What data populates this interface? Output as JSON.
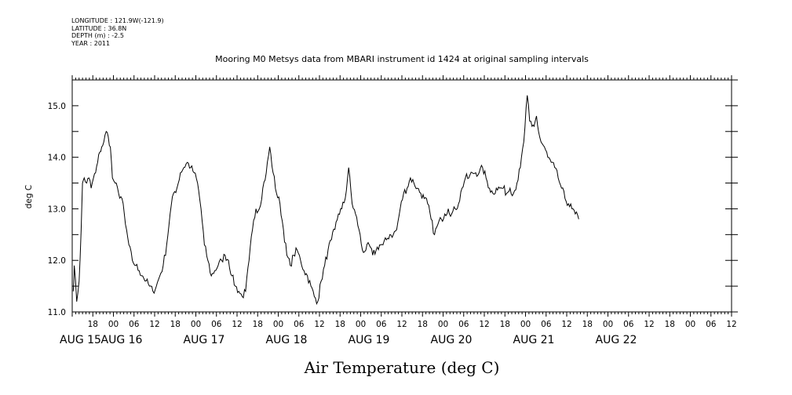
{
  "header": {
    "longitude": "LONGITUDE : 121.9W(-121.9)",
    "latitude": "LATITUDE : 36.8N",
    "depth": "DEPTH (m) : -2.5",
    "year": "YEAR : 2011"
  },
  "chart_data": {
    "type": "line",
    "title": "Mooring M0 Metsys data from MBARI instrument id 1424 at original sampling intervals",
    "xlabel": "Air Temperature (deg C)",
    "ylabel": "deg C",
    "ylim": [
      11.0,
      15.5
    ],
    "xlim_hours": [
      12,
      204
    ],
    "y_ticks": [
      {
        "value": 11.0,
        "label": "11.0"
      },
      {
        "value": 12.0,
        "label": "12.0"
      },
      {
        "value": 13.0,
        "label": "13.0"
      },
      {
        "value": 14.0,
        "label": "14.0"
      },
      {
        "value": 15.0,
        "label": "15.0"
      }
    ],
    "x_hour_ticks": [
      {
        "hour": 18,
        "label": "18"
      },
      {
        "hour": 24,
        "label": "00"
      },
      {
        "hour": 30,
        "label": "06"
      },
      {
        "hour": 36,
        "label": "12"
      },
      {
        "hour": 42,
        "label": "18"
      },
      {
        "hour": 48,
        "label": "00"
      },
      {
        "hour": 54,
        "label": "06"
      },
      {
        "hour": 60,
        "label": "12"
      },
      {
        "hour": 66,
        "label": "18"
      },
      {
        "hour": 72,
        "label": "00"
      },
      {
        "hour": 78,
        "label": "06"
      },
      {
        "hour": 84,
        "label": "12"
      },
      {
        "hour": 90,
        "label": "18"
      },
      {
        "hour": 96,
        "label": "00"
      },
      {
        "hour": 102,
        "label": "06"
      },
      {
        "hour": 108,
        "label": "12"
      },
      {
        "hour": 114,
        "label": "18"
      },
      {
        "hour": 120,
        "label": "00"
      },
      {
        "hour": 126,
        "label": "06"
      },
      {
        "hour": 132,
        "label": "12"
      },
      {
        "hour": 138,
        "label": "18"
      },
      {
        "hour": 144,
        "label": "00"
      },
      {
        "hour": 150,
        "label": "06"
      },
      {
        "hour": 156,
        "label": "12"
      },
      {
        "hour": 162,
        "label": "18"
      },
      {
        "hour": 168,
        "label": "00"
      },
      {
        "hour": 174,
        "label": "06"
      },
      {
        "hour": 180,
        "label": "12"
      },
      {
        "hour": 186,
        "label": "18"
      },
      {
        "hour": 192,
        "label": "00"
      },
      {
        "hour": 198,
        "label": "06"
      },
      {
        "hour": 204,
        "label": "12"
      }
    ],
    "x_date_labels": [
      {
        "hour": 12,
        "label": "AUG 15"
      },
      {
        "hour": 24,
        "label": "AUG 16"
      },
      {
        "hour": 48,
        "label": "AUG 17"
      },
      {
        "hour": 72,
        "label": "AUG 18"
      },
      {
        "hour": 96,
        "label": "AUG 19"
      },
      {
        "hour": 120,
        "label": "AUG 20"
      },
      {
        "hour": 144,
        "label": "AUG 21"
      },
      {
        "hour": 168,
        "label": "AUG 22"
      }
    ],
    "series": [
      {
        "values": [
          [
            12.3,
            11.4
          ],
          [
            12.6,
            11.9
          ],
          [
            13.3,
            11.2
          ],
          [
            14.0,
            11.6
          ],
          [
            14.6,
            12.6
          ],
          [
            15.0,
            13.5
          ],
          [
            15.5,
            13.6
          ],
          [
            16.2,
            13.5
          ],
          [
            16.9,
            13.6
          ],
          [
            17.5,
            13.4
          ],
          [
            18.2,
            13.6
          ],
          [
            18.8,
            13.7
          ],
          [
            19.4,
            13.9
          ],
          [
            20.0,
            14.1
          ],
          [
            20.6,
            14.2
          ],
          [
            21.2,
            14.3
          ],
          [
            21.9,
            14.5
          ],
          [
            22.5,
            14.4
          ],
          [
            23.1,
            14.2
          ],
          [
            23.7,
            13.6
          ],
          [
            24.5,
            13.5
          ],
          [
            25.5,
            13.3
          ],
          [
            26.5,
            13.2
          ],
          [
            27.5,
            12.7
          ],
          [
            28.5,
            12.3
          ],
          [
            29.5,
            12.0
          ],
          [
            30.5,
            11.9
          ],
          [
            31.5,
            11.8
          ],
          [
            32.5,
            11.7
          ],
          [
            33.5,
            11.6
          ],
          [
            34.5,
            11.5
          ],
          [
            35.5,
            11.4
          ],
          [
            36.5,
            11.5
          ],
          [
            37.5,
            11.7
          ],
          [
            38.5,
            11.9
          ],
          [
            39.5,
            12.3
          ],
          [
            40.5,
            12.9
          ],
          [
            41.5,
            13.3
          ],
          [
            42.5,
            13.4
          ],
          [
            43.5,
            13.7
          ],
          [
            44.5,
            13.8
          ],
          [
            45.5,
            13.9
          ],
          [
            46.5,
            13.8
          ],
          [
            47.5,
            13.7
          ],
          [
            48.5,
            13.5
          ],
          [
            49.5,
            13.0
          ],
          [
            50.5,
            12.3
          ],
          [
            51.5,
            12.0
          ],
          [
            52.5,
            11.7
          ],
          [
            53.5,
            11.8
          ],
          [
            54.5,
            11.9
          ],
          [
            55.5,
            12.0
          ],
          [
            56.5,
            12.1
          ],
          [
            57.5,
            12.0
          ],
          [
            58.5,
            11.7
          ],
          [
            59.5,
            11.5
          ],
          [
            60.5,
            11.4
          ],
          [
            61.5,
            11.3
          ],
          [
            62.5,
            11.4
          ],
          [
            63.5,
            12.0
          ],
          [
            64.5,
            12.6
          ],
          [
            65.5,
            13.0
          ],
          [
            66.5,
            13.0
          ],
          [
            67.5,
            13.4
          ],
          [
            68.5,
            13.7
          ],
          [
            69.5,
            14.2
          ],
          [
            70.5,
            13.7
          ],
          [
            71.5,
            13.3
          ],
          [
            72.5,
            13.1
          ],
          [
            73.5,
            12.6
          ],
          [
            74.5,
            12.1
          ],
          [
            75.5,
            11.9
          ],
          [
            76.5,
            12.1
          ],
          [
            77.5,
            12.2
          ],
          [
            78.5,
            12.0
          ],
          [
            79.5,
            11.8
          ],
          [
            80.5,
            11.7
          ],
          [
            81.5,
            11.5
          ],
          [
            82.5,
            11.3
          ],
          [
            83.5,
            11.2
          ],
          [
            84.5,
            11.6
          ],
          [
            85.5,
            11.9
          ],
          [
            86.5,
            12.2
          ],
          [
            87.5,
            12.4
          ],
          [
            88.5,
            12.6
          ],
          [
            89.5,
            12.9
          ],
          [
            90.5,
            13.0
          ],
          [
            91.5,
            13.2
          ],
          [
            92.5,
            13.8
          ],
          [
            93.5,
            13.1
          ],
          [
            94.5,
            12.9
          ],
          [
            95.5,
            12.6
          ],
          [
            96.5,
            12.2
          ],
          [
            97.5,
            12.2
          ],
          [
            98.5,
            12.3
          ],
          [
            99.5,
            12.1
          ],
          [
            100.5,
            12.2
          ],
          [
            101.5,
            12.3
          ],
          [
            102.5,
            12.3
          ],
          [
            103.5,
            12.4
          ],
          [
            104.5,
            12.5
          ],
          [
            105.5,
            12.5
          ],
          [
            106.5,
            12.6
          ],
          [
            107.5,
            13.0
          ],
          [
            108.5,
            13.3
          ],
          [
            109.5,
            13.4
          ],
          [
            110.5,
            13.6
          ],
          [
            111.5,
            13.5
          ],
          [
            112.5,
            13.4
          ],
          [
            113.5,
            13.3
          ],
          [
            114.5,
            13.2
          ],
          [
            115.5,
            13.1
          ],
          [
            116.5,
            12.8
          ],
          [
            117.5,
            12.5
          ],
          [
            118.5,
            12.7
          ],
          [
            119.5,
            12.8
          ],
          [
            120.5,
            12.9
          ],
          [
            121.5,
            13.0
          ],
          [
            122.5,
            12.9
          ],
          [
            123.5,
            13.0
          ],
          [
            124.5,
            13.1
          ],
          [
            125.5,
            13.4
          ],
          [
            126.5,
            13.6
          ],
          [
            127.5,
            13.6
          ],
          [
            128.5,
            13.7
          ],
          [
            129.5,
            13.7
          ],
          [
            130.5,
            13.7
          ],
          [
            131.5,
            13.8
          ],
          [
            132.5,
            13.6
          ],
          [
            133.5,
            13.4
          ],
          [
            134.5,
            13.3
          ],
          [
            135.5,
            13.4
          ],
          [
            136.5,
            13.4
          ],
          [
            137.5,
            13.4
          ],
          [
            138.5,
            13.3
          ],
          [
            139.5,
            13.4
          ],
          [
            140.5,
            13.3
          ],
          [
            141.5,
            13.5
          ],
          [
            142.5,
            13.8
          ],
          [
            143.5,
            14.3
          ],
          [
            144.5,
            15.2
          ],
          [
            145.2,
            14.7
          ],
          [
            145.9,
            14.6
          ],
          [
            146.5,
            14.6
          ],
          [
            147.2,
            14.8
          ],
          [
            147.8,
            14.5
          ],
          [
            148.5,
            14.3
          ],
          [
            149.5,
            14.2
          ],
          [
            150.5,
            14.0
          ],
          [
            151.5,
            13.9
          ],
          [
            152.5,
            13.8
          ],
          [
            153.5,
            13.6
          ],
          [
            154.5,
            13.4
          ],
          [
            155.5,
            13.2
          ],
          [
            156.5,
            13.1
          ],
          [
            157.5,
            13.0
          ],
          [
            158.5,
            12.9
          ],
          [
            159.5,
            12.8
          ]
        ]
      }
    ]
  }
}
